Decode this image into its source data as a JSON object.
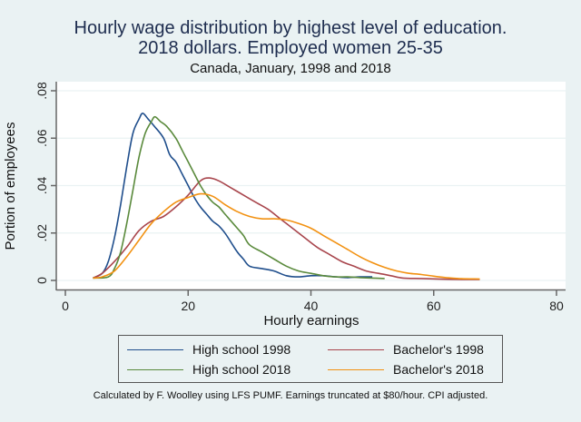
{
  "header": {
    "title_line1": "Hourly wage distribution by highest level of education.",
    "title_line2": "2018 dollars. Employed women 25-35",
    "subtitle": "Canada, January, 1998 and 2018"
  },
  "footer": {
    "note": "Calculated by F. Woolley using LFS PUMF. Earnings truncated at $80/hour. CPI adjusted."
  },
  "legend": {
    "items": [
      {
        "label": "High school 1998",
        "color": "#1f4e8c"
      },
      {
        "label": "Bachelor's 1998",
        "color": "#a8454c"
      },
      {
        "label": "High school 2018",
        "color": "#5a8a3c"
      },
      {
        "label": "Bachelor's 2018",
        "color": "#f29111"
      }
    ]
  },
  "chart_data": {
    "type": "line",
    "title": "Hourly wage distribution by highest level of education. 2018 dollars. Employed women 25-35",
    "subtitle": "Canada, January, 1998 and 2018",
    "xlabel": "Hourly earnings",
    "ylabel": "Portion of employees",
    "xlim": [
      0,
      80
    ],
    "ylim": [
      0,
      0.08
    ],
    "xticks": [
      0,
      20,
      40,
      60,
      80
    ],
    "yticks": [
      0,
      0.02,
      0.04,
      0.06,
      0.08
    ],
    "ytick_labels": [
      "0",
      ".02",
      ".04",
      ".06",
      ".08"
    ],
    "grid": true,
    "legend_position": "bottom",
    "series": [
      {
        "name": "High school 1998",
        "color": "#1f4e8c",
        "x": [
          4.5,
          6,
          7,
          8,
          9,
          10,
          11,
          12,
          12.6,
          13.5,
          14.5,
          16,
          17,
          18,
          19,
          20,
          21,
          22,
          23,
          24,
          25,
          26,
          27,
          28,
          29,
          30,
          32,
          34,
          36,
          38,
          40,
          42,
          44,
          46,
          48,
          50
        ],
        "y": [
          0.001,
          0.003,
          0.008,
          0.018,
          0.032,
          0.048,
          0.062,
          0.068,
          0.0705,
          0.068,
          0.065,
          0.06,
          0.053,
          0.05,
          0.045,
          0.04,
          0.035,
          0.031,
          0.028,
          0.025,
          0.023,
          0.02,
          0.016,
          0.012,
          0.009,
          0.006,
          0.005,
          0.004,
          0.002,
          0.0015,
          0.002,
          0.002,
          0.0015,
          0.0012,
          0.0015,
          0.0015
        ]
      },
      {
        "name": "Bachelor's 1998",
        "color": "#a8454c",
        "x": [
          4.5,
          6,
          8,
          10,
          12,
          14,
          16,
          18,
          20,
          22,
          23.4,
          25,
          27,
          29,
          31,
          33,
          35,
          37,
          39,
          41,
          43,
          45,
          47,
          49,
          51,
          53,
          55,
          58,
          62,
          66,
          67.5
        ],
        "y": [
          0.001,
          0.003,
          0.008,
          0.014,
          0.021,
          0.025,
          0.027,
          0.031,
          0.036,
          0.042,
          0.0432,
          0.042,
          0.039,
          0.036,
          0.033,
          0.03,
          0.026,
          0.022,
          0.018,
          0.014,
          0.011,
          0.008,
          0.006,
          0.004,
          0.003,
          0.002,
          0.001,
          0.0008,
          0.0005,
          0.0004,
          0.0004
        ]
      },
      {
        "name": "High school 2018",
        "color": "#5a8a3c",
        "x": [
          4.5,
          7,
          8,
          9,
          10,
          11,
          12,
          13,
          14,
          14.6,
          15.5,
          16.5,
          18,
          19,
          20,
          21,
          22,
          23,
          24,
          25,
          26,
          27,
          28,
          29,
          30,
          32,
          34,
          36,
          38,
          40,
          42,
          44,
          46,
          48,
          50,
          52
        ],
        "y": [
          0.001,
          0.0015,
          0.005,
          0.012,
          0.024,
          0.038,
          0.052,
          0.062,
          0.067,
          0.069,
          0.067,
          0.065,
          0.06,
          0.055,
          0.05,
          0.045,
          0.04,
          0.036,
          0.033,
          0.031,
          0.028,
          0.025,
          0.022,
          0.019,
          0.015,
          0.012,
          0.009,
          0.006,
          0.004,
          0.003,
          0.002,
          0.0015,
          0.0015,
          0.0012,
          0.001,
          0.0008
        ]
      },
      {
        "name": "Bachelor's 2018",
        "color": "#f29111",
        "x": [
          4.5,
          6,
          8,
          10,
          12,
          14,
          16,
          18,
          20,
          22,
          24,
          26,
          28,
          30,
          32,
          34,
          36,
          38,
          40,
          42,
          44,
          46,
          48,
          50,
          52,
          54,
          56,
          58,
          60,
          62,
          64,
          67.5
        ],
        "y": [
          0.001,
          0.0015,
          0.004,
          0.01,
          0.017,
          0.024,
          0.029,
          0.033,
          0.035,
          0.0365,
          0.0355,
          0.032,
          0.029,
          0.027,
          0.026,
          0.026,
          0.0255,
          0.024,
          0.022,
          0.019,
          0.016,
          0.013,
          0.01,
          0.0075,
          0.0055,
          0.004,
          0.003,
          0.0025,
          0.0018,
          0.0012,
          0.0008,
          0.0006
        ]
      }
    ]
  }
}
